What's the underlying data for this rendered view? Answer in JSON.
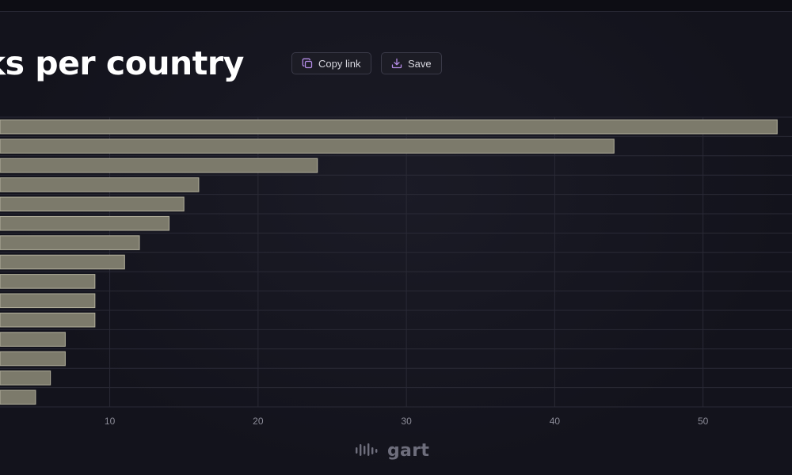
{
  "header": {
    "title": "cks per country",
    "copy_label": "Copy link",
    "save_label": "Save"
  },
  "brand": {
    "name": "gart"
  },
  "colors": {
    "background": "#13131c",
    "bar_fill": "#7c7a6b",
    "bar_stroke": "#b3b09c",
    "grid": "#2a2a36",
    "tick_text": "#8c8c98",
    "icon_accent": "#b48ce6"
  },
  "chart_data": {
    "type": "bar",
    "orientation": "horizontal",
    "values": [
      55,
      44,
      24,
      16,
      15,
      14,
      12,
      11,
      9,
      9,
      9,
      7,
      7,
      6,
      5
    ],
    "xlim": [
      2.6,
      56
    ],
    "xticks": [
      10,
      20,
      30,
      40,
      50
    ],
    "xtick_labels": [
      "10",
      "20",
      "30",
      "40",
      "50"
    ],
    "grid": true
  }
}
